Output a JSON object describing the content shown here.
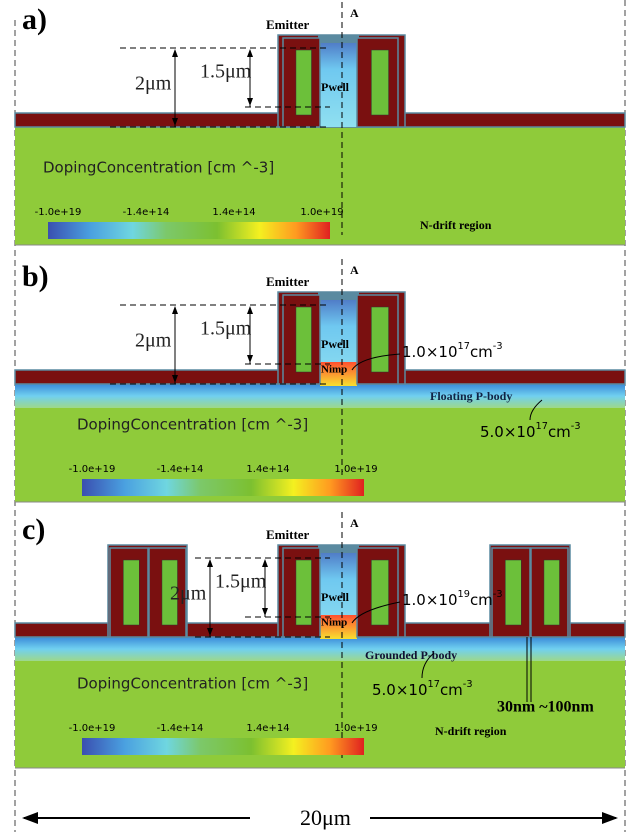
{
  "panels": [
    {
      "label": "a)",
      "cut_label": "A",
      "emitter": "Emitter",
      "pwell": "Pwell",
      "depth_outer": "2μm",
      "depth_inner": "1.5μm",
      "colorbar_title": "DopingConcentration [cm ^-3]",
      "colorbar_ticks": [
        "-1.0e+19",
        "-1.4e+14",
        "1.4e+14",
        "1.0e+19"
      ],
      "region": "N-drift region"
    },
    {
      "label": "b)",
      "cut_label": "A",
      "emitter": "Emitter",
      "pwell": "Pwell",
      "nimp": "Nimp",
      "depth_outer": "2μm",
      "depth_inner": "1.5μm",
      "colorbar_title": "DopingConcentration [cm ^-3]",
      "colorbar_ticks": [
        "-1.0e+19",
        "-1.4e+14",
        "1.4e+14",
        "1.0e+19"
      ],
      "nimp_concentration": {
        "mantissa": "1.0×10",
        "exponent": "17",
        "unit": "cm",
        "unit_exponent": "-3"
      },
      "p_body": "Floating P-body",
      "p_body_concentration": {
        "mantissa": "5.0×10",
        "exponent": "17",
        "unit": "cm",
        "unit_exponent": "-3"
      }
    },
    {
      "label": "c)",
      "cut_label": "A",
      "emitter": "Emitter",
      "pwell": "Pwell",
      "nimp": "Nimp",
      "depth_outer": "2μm",
      "depth_inner": "1.5μm",
      "colorbar_title": "DopingConcentration [cm ^-3]",
      "colorbar_ticks": [
        "-1.0e+19",
        "-1.4e+14",
        "1.4e+14",
        "1.0e+19"
      ],
      "region": "N-drift region",
      "nimp_concentration": {
        "mantissa": "1.0×10",
        "exponent": "19",
        "unit": "cm",
        "unit_exponent": "-3"
      },
      "p_body": "Grounded P-body",
      "p_body_concentration": {
        "mantissa": "5.0×10",
        "exponent": "17",
        "unit": "cm",
        "unit_exponent": "-3"
      },
      "spacing": "30nm ~100nm"
    }
  ],
  "width_label": "20μm"
}
